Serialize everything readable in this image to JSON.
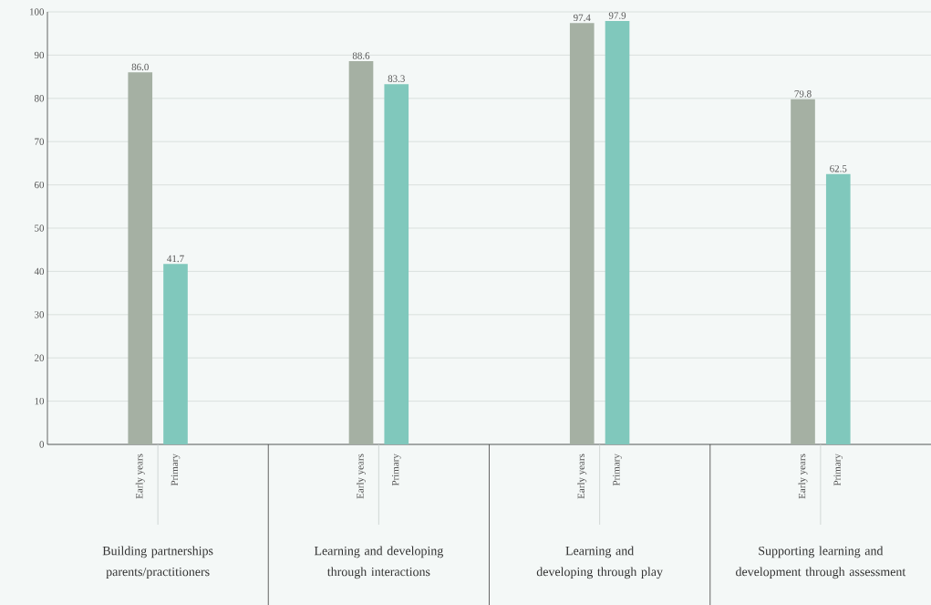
{
  "chart_data": {
    "type": "bar",
    "categories": [
      "Building partnerships parents/practitioners",
      "Learning and developing through interactions",
      "Learning and developing through play",
      "Supporting learning and development through assessment"
    ],
    "series": [
      {
        "name": "Early years",
        "color": "#a5b0a3",
        "values": [
          86.0,
          88.6,
          97.4,
          79.8
        ],
        "value_labels": [
          "86.0",
          "88.6",
          "97.4",
          "79.8"
        ]
      },
      {
        "name": "Primary",
        "color": "#80c8bc",
        "values": [
          41.7,
          83.3,
          97.9,
          62.5
        ],
        "value_labels": [
          "41.7",
          "83.3",
          "97.9",
          "62.5"
        ]
      }
    ],
    "ylim": [
      0,
      100
    ],
    "yticks": [
      0,
      10,
      20,
      30,
      40,
      50,
      60,
      70,
      80,
      90,
      100
    ],
    "grid": "y"
  }
}
